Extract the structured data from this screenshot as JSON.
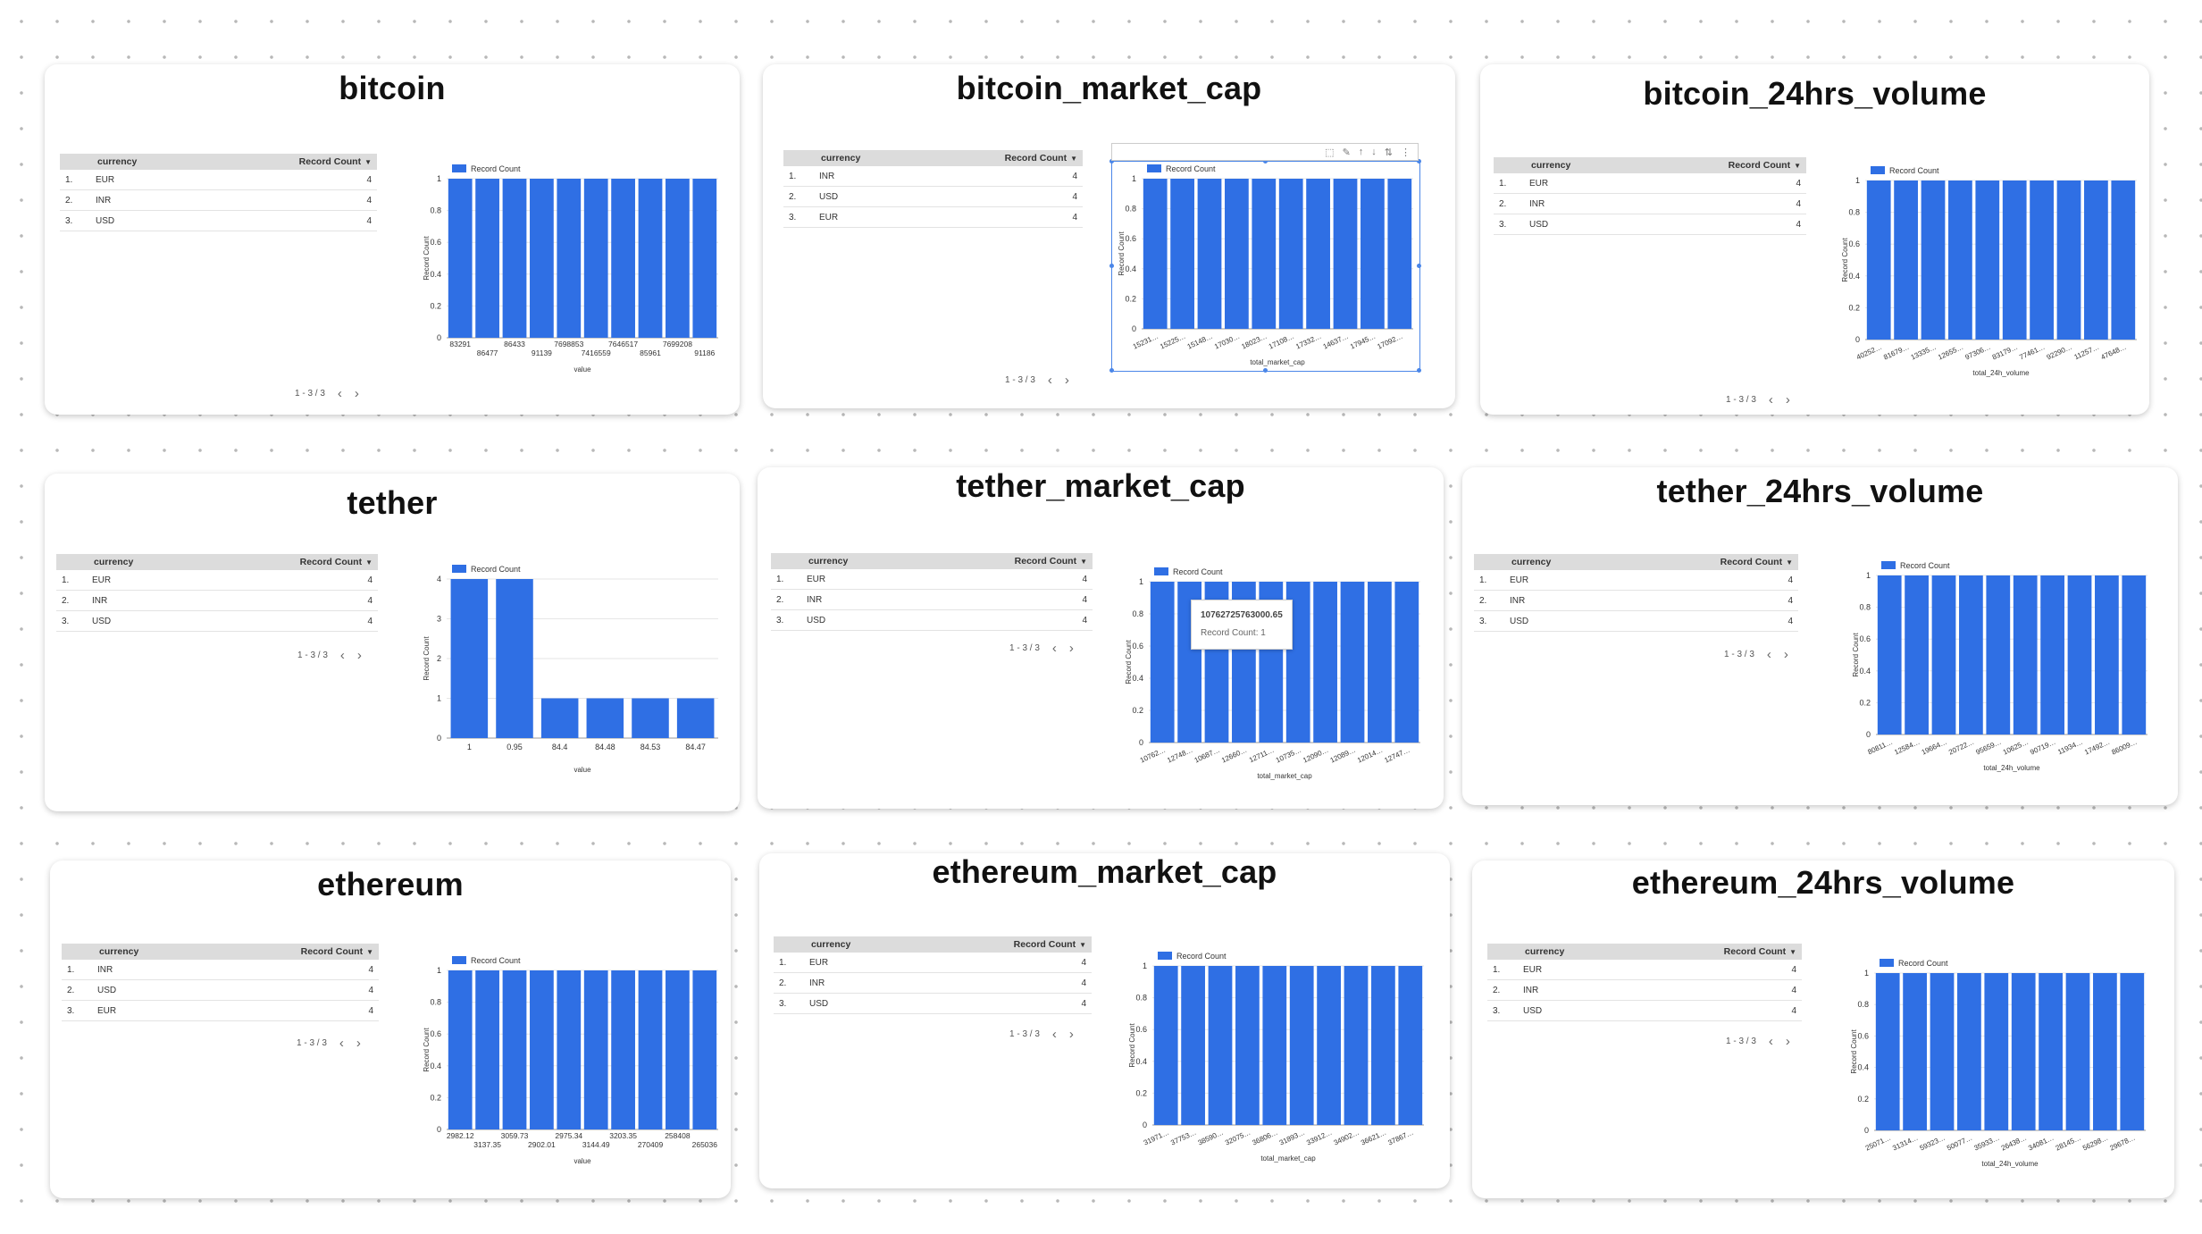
{
  "colors": {
    "bar": "#2f6fe4",
    "header_bg": "#dcdcdc",
    "accent": "#4a86e8"
  },
  "table_header": {
    "currency": "currency",
    "record_count": "Record Count"
  },
  "legend_label": "Record Count",
  "y_label": "Record Count",
  "pager_label": "1 - 3 / 3",
  "toolbar_icons": [
    "crop-icon",
    "pencil-icon",
    "arrow-up-icon",
    "arrow-down-icon",
    "sort-az-icon",
    "more-vert-icon"
  ],
  "tooltip": {
    "value": "10762725763000.65",
    "label": "Record Count: 1"
  },
  "cards": [
    {
      "title": "bitcoin",
      "rows": [
        {
          "idx": "1.",
          "currency": "EUR",
          "count": "4"
        },
        {
          "idx": "2.",
          "currency": "INR",
          "count": "4"
        },
        {
          "idx": "3.",
          "currency": "USD",
          "count": "4"
        }
      ],
      "chart_data": {
        "type": "bar",
        "x_label": "value",
        "y_ticks": [
          "0",
          "0.2",
          "0.4",
          "0.6",
          "0.8",
          "1"
        ],
        "ylim": [
          0,
          1
        ],
        "categories": [
          "83291",
          "86477",
          "86433",
          "91139",
          "7698853",
          "7416559",
          "7646517",
          "85961",
          "7699208",
          "91186"
        ],
        "values": [
          1,
          1,
          1,
          1,
          1,
          1,
          1,
          1,
          1,
          1
        ],
        "label_style": "stagger"
      }
    },
    {
      "title": "bitcoin_market_cap",
      "rows": [
        {
          "idx": "1.",
          "currency": "INR",
          "count": "4"
        },
        {
          "idx": "2.",
          "currency": "USD",
          "count": "4"
        },
        {
          "idx": "3.",
          "currency": "EUR",
          "count": "4"
        }
      ],
      "chart_data": {
        "type": "bar",
        "x_label": "total_market_cap",
        "y_ticks": [
          "0",
          "0.2",
          "0.4",
          "0.6",
          "0.8",
          "1"
        ],
        "ylim": [
          0,
          1
        ],
        "categories": [
          "15231…",
          "15225…",
          "15148…",
          "17030…",
          "18023…",
          "17108…",
          "17332…",
          "14637…",
          "17945…",
          "17092…"
        ],
        "values": [
          1,
          1,
          1,
          1,
          1,
          1,
          1,
          1,
          1,
          1
        ],
        "label_style": "rotate"
      }
    },
    {
      "title": "bitcoin_24hrs_volume",
      "rows": [
        {
          "idx": "1.",
          "currency": "EUR",
          "count": "4"
        },
        {
          "idx": "2.",
          "currency": "INR",
          "count": "4"
        },
        {
          "idx": "3.",
          "currency": "USD",
          "count": "4"
        }
      ],
      "chart_data": {
        "type": "bar",
        "x_label": "total_24h_volume",
        "y_ticks": [
          "0",
          "0.2",
          "0.4",
          "0.6",
          "0.8",
          "1"
        ],
        "ylim": [
          0,
          1
        ],
        "categories": [
          "40252…",
          "81679…",
          "13335…",
          "12655…",
          "97306…",
          "83179…",
          "77461…",
          "92290…",
          "11257…",
          "47648…"
        ],
        "values": [
          1,
          1,
          1,
          1,
          1,
          1,
          1,
          1,
          1,
          1
        ],
        "label_style": "rotate"
      }
    },
    {
      "title": "tether",
      "rows": [
        {
          "idx": "1.",
          "currency": "EUR",
          "count": "4"
        },
        {
          "idx": "2.",
          "currency": "INR",
          "count": "4"
        },
        {
          "idx": "3.",
          "currency": "USD",
          "count": "4"
        }
      ],
      "chart_data": {
        "type": "bar",
        "x_label": "value",
        "y_ticks": [
          "0",
          "1",
          "2",
          "3",
          "4"
        ],
        "ylim": [
          0,
          4
        ],
        "categories": [
          "1",
          "0.95",
          "84.4",
          "84.48",
          "84.53",
          "84.47"
        ],
        "values": [
          4,
          4,
          1,
          1,
          1,
          1
        ],
        "label_style": "flat"
      }
    },
    {
      "title": "tether_market_cap",
      "rows": [
        {
          "idx": "1.",
          "currency": "EUR",
          "count": "4"
        },
        {
          "idx": "2.",
          "currency": "INR",
          "count": "4"
        },
        {
          "idx": "3.",
          "currency": "USD",
          "count": "4"
        }
      ],
      "chart_data": {
        "type": "bar",
        "x_label": "total_market_cap",
        "y_ticks": [
          "0",
          "0.2",
          "0.4",
          "0.6",
          "0.8",
          "1"
        ],
        "ylim": [
          0,
          1
        ],
        "categories": [
          "10762…",
          "12748…",
          "10687…",
          "12660…",
          "12711…",
          "10735…",
          "12090…",
          "12089…",
          "12014…",
          "12747…"
        ],
        "values": [
          1,
          1,
          1,
          1,
          1,
          1,
          1,
          1,
          1,
          1
        ],
        "label_style": "rotate"
      }
    },
    {
      "title": "tether_24hrs_volume",
      "rows": [
        {
          "idx": "1.",
          "currency": "EUR",
          "count": "4"
        },
        {
          "idx": "2.",
          "currency": "INR",
          "count": "4"
        },
        {
          "idx": "3.",
          "currency": "USD",
          "count": "4"
        }
      ],
      "chart_data": {
        "type": "bar",
        "x_label": "total_24h_volume",
        "y_ticks": [
          "0",
          "0.2",
          "0.4",
          "0.6",
          "0.8",
          "1"
        ],
        "ylim": [
          0,
          1
        ],
        "categories": [
          "80811…",
          "12584…",
          "19664…",
          "20722…",
          "95659…",
          "10625…",
          "90719…",
          "11934…",
          "17492…",
          "86009…"
        ],
        "values": [
          1,
          1,
          1,
          1,
          1,
          1,
          1,
          1,
          1,
          1
        ],
        "label_style": "rotate"
      }
    },
    {
      "title": "ethereum",
      "rows": [
        {
          "idx": "1.",
          "currency": "INR",
          "count": "4"
        },
        {
          "idx": "2.",
          "currency": "USD",
          "count": "4"
        },
        {
          "idx": "3.",
          "currency": "EUR",
          "count": "4"
        }
      ],
      "chart_data": {
        "type": "bar",
        "x_label": "value",
        "y_ticks": [
          "0",
          "0.2",
          "0.4",
          "0.6",
          "0.8",
          "1"
        ],
        "ylim": [
          0,
          1
        ],
        "categories": [
          "2982.12",
          "3137.35",
          "3059.73",
          "2902.01",
          "2975.34",
          "3144.49",
          "3203.35",
          "270409",
          "258408",
          "265036"
        ],
        "values": [
          1,
          1,
          1,
          1,
          1,
          1,
          1,
          1,
          1,
          1
        ],
        "label_style": "stagger"
      }
    },
    {
      "title": "ethereum_market_cap",
      "rows": [
        {
          "idx": "1.",
          "currency": "EUR",
          "count": "4"
        },
        {
          "idx": "2.",
          "currency": "INR",
          "count": "4"
        },
        {
          "idx": "3.",
          "currency": "USD",
          "count": "4"
        }
      ],
      "chart_data": {
        "type": "bar",
        "x_label": "total_market_cap",
        "y_ticks": [
          "0",
          "0.2",
          "0.4",
          "0.6",
          "0.8",
          "1"
        ],
        "ylim": [
          0,
          1
        ],
        "categories": [
          "31971…",
          "37753…",
          "38590…",
          "32075…",
          "36806…",
          "31893…",
          "33912…",
          "34902…",
          "36621…",
          "37867…"
        ],
        "values": [
          1,
          1,
          1,
          1,
          1,
          1,
          1,
          1,
          1,
          1
        ],
        "label_style": "rotate"
      }
    },
    {
      "title": "ethereum_24hrs_volume",
      "rows": [
        {
          "idx": "1.",
          "currency": "EUR",
          "count": "4"
        },
        {
          "idx": "2.",
          "currency": "INR",
          "count": "4"
        },
        {
          "idx": "3.",
          "currency": "USD",
          "count": "4"
        }
      ],
      "chart_data": {
        "type": "bar",
        "x_label": "total_24h_volume",
        "y_ticks": [
          "0",
          "0.2",
          "0.4",
          "0.6",
          "0.8",
          "1"
        ],
        "ylim": [
          0,
          1
        ],
        "categories": [
          "25071…",
          "31314…",
          "59323…",
          "50077…",
          "35933…",
          "26438…",
          "34081…",
          "28145…",
          "56298…",
          "29678…"
        ],
        "values": [
          1,
          1,
          1,
          1,
          1,
          1,
          1,
          1,
          1,
          1
        ],
        "label_style": "rotate"
      }
    }
  ]
}
